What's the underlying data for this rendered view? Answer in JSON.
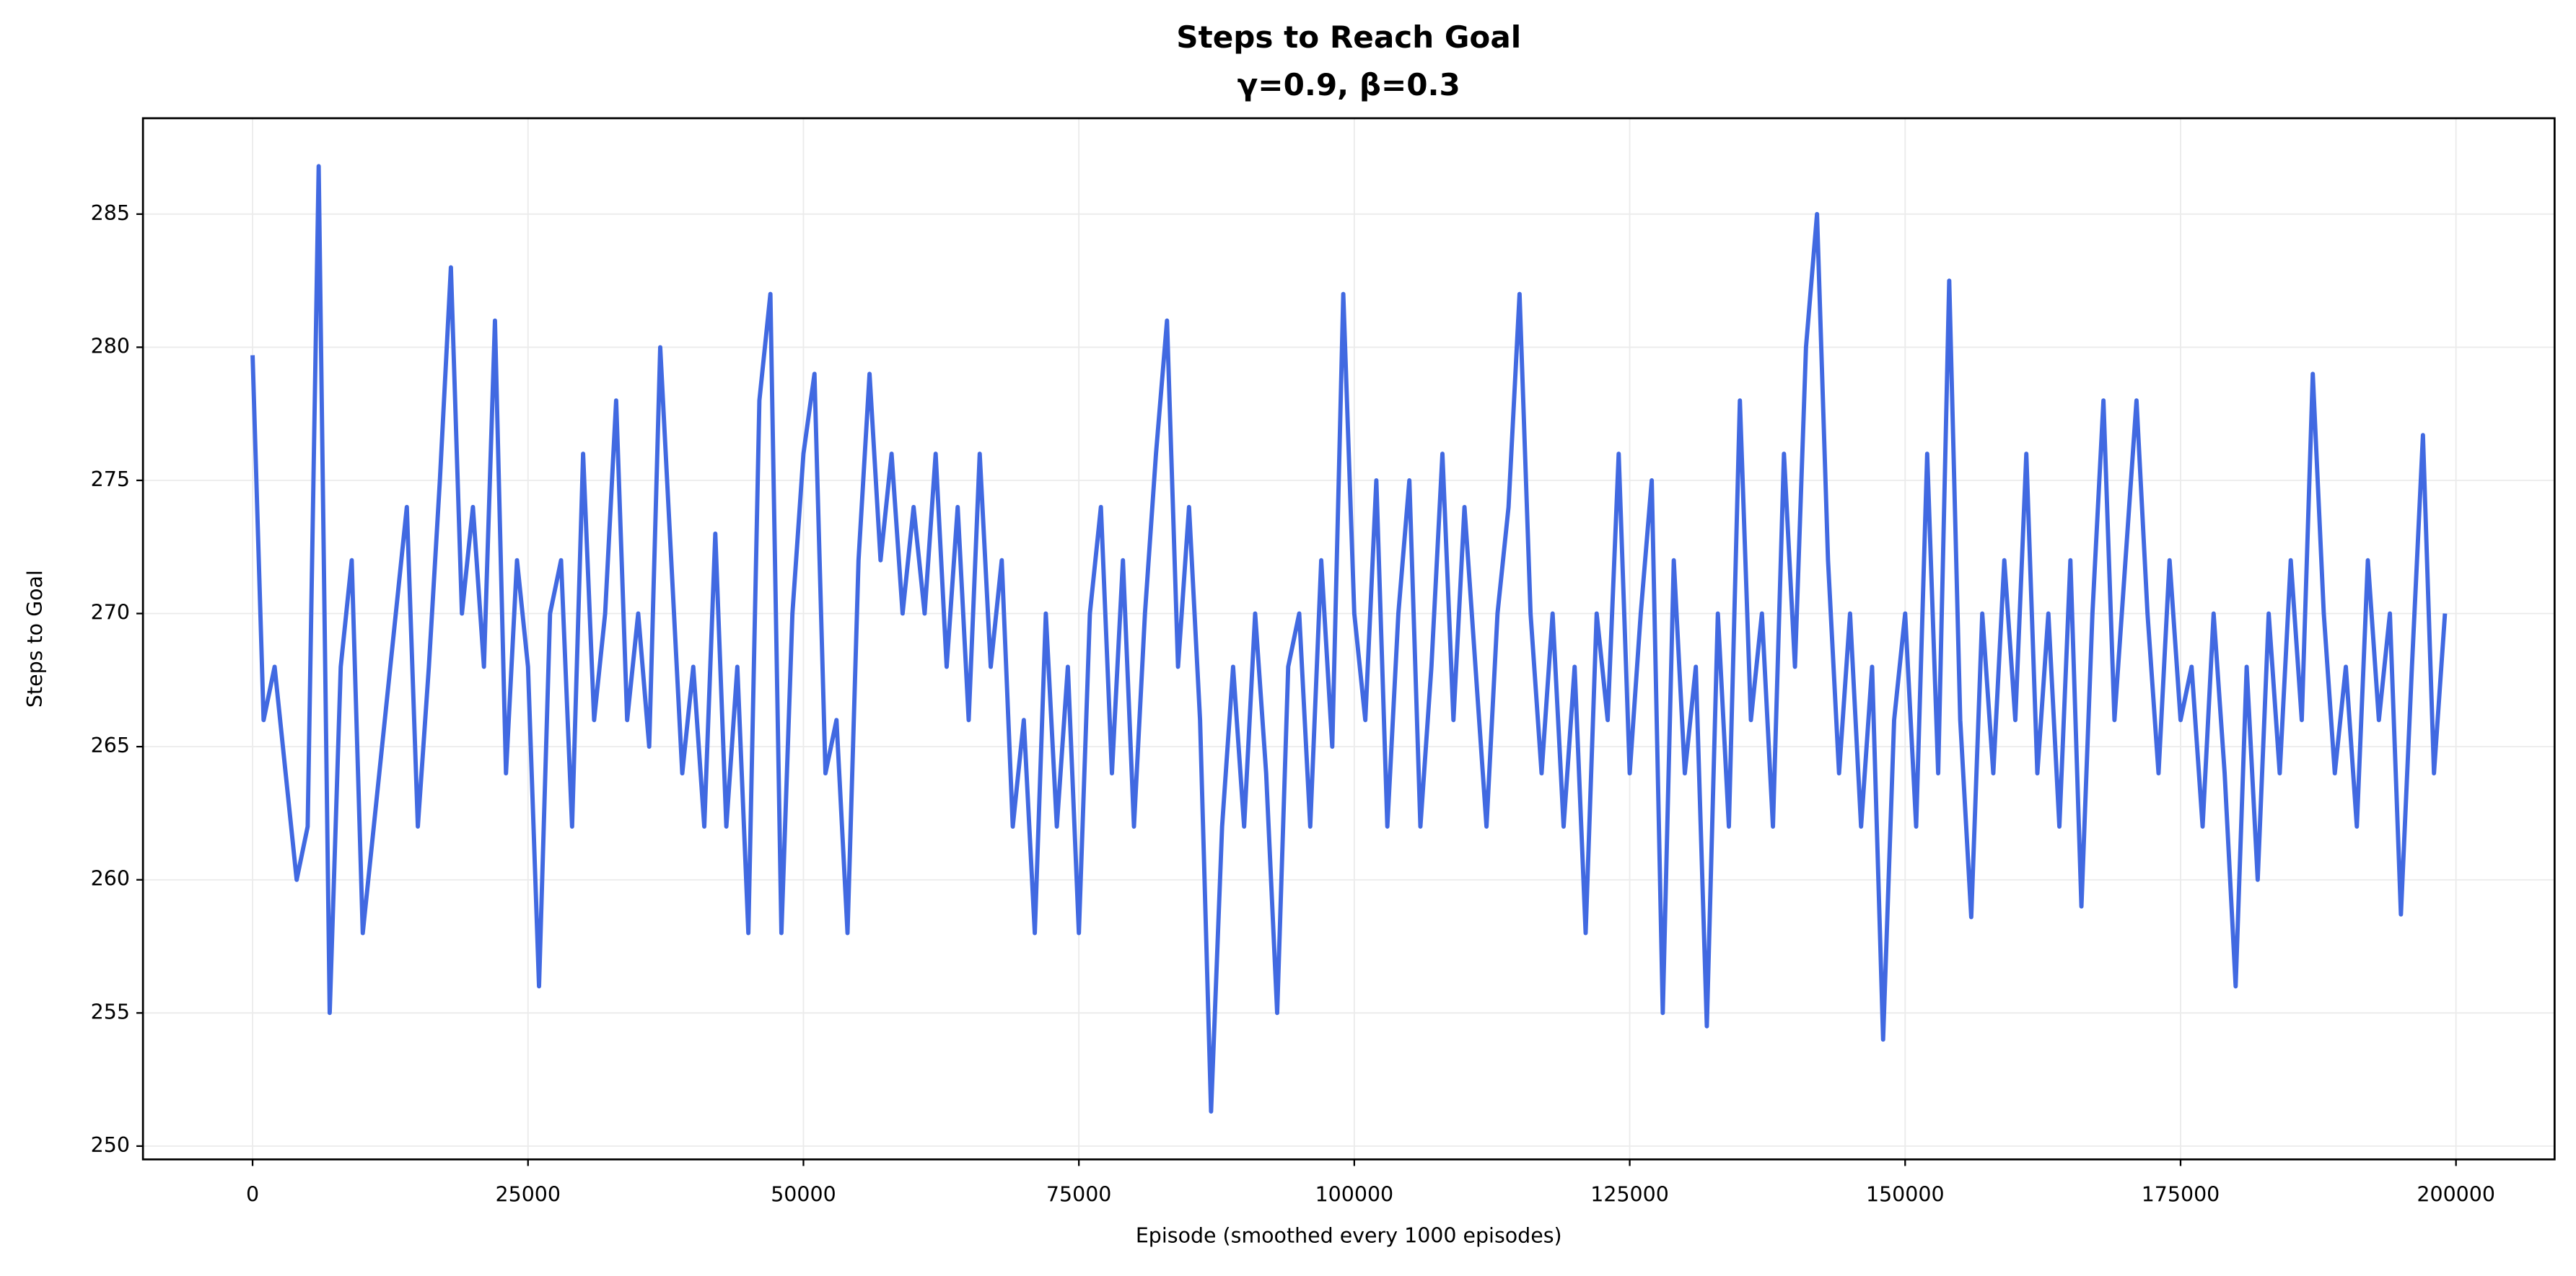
{
  "chart_data": {
    "type": "line",
    "title": "Steps to Reach Goal",
    "subtitle": "γ=0.9, β=0.3",
    "x_label": "Episode (smoothed every 1000 episodes)",
    "y_label": "Steps to Goal",
    "xlim": [
      -9950,
      208950
    ],
    "ylim": [
      249.5,
      288.6
    ],
    "xticks": [
      0,
      25000,
      50000,
      75000,
      100000,
      125000,
      150000,
      175000,
      200000
    ],
    "yticks": [
      250,
      255,
      260,
      265,
      270,
      275,
      280,
      285
    ],
    "grid": true,
    "x": [
      0,
      1000,
      2000,
      3000,
      4000,
      5000,
      6000,
      7000,
      8000,
      9000,
      10000,
      11000,
      12000,
      13000,
      14000,
      15000,
      16000,
      17000,
      18000,
      19000,
      20000,
      21000,
      22000,
      23000,
      24000,
      25000,
      26000,
      27000,
      28000,
      29000,
      30000,
      31000,
      32000,
      33000,
      34000,
      35000,
      36000,
      37000,
      38000,
      39000,
      40000,
      41000,
      42000,
      43000,
      44000,
      45000,
      46000,
      47000,
      48000,
      49000,
      50000,
      51000,
      52000,
      53000,
      54000,
      55000,
      56000,
      57000,
      58000,
      59000,
      60000,
      61000,
      62000,
      63000,
      64000,
      65000,
      66000,
      67000,
      68000,
      69000,
      70000,
      71000,
      72000,
      73000,
      74000,
      75000,
      76000,
      77000,
      78000,
      79000,
      80000,
      81000,
      82000,
      83000,
      84000,
      85000,
      86000,
      87000,
      88000,
      89000,
      90000,
      91000,
      92000,
      93000,
      94000,
      95000,
      96000,
      97000,
      98000,
      99000,
      100000,
      101000,
      102000,
      103000,
      104000,
      105000,
      106000,
      107000,
      108000,
      109000,
      110000,
      111000,
      112000,
      113000,
      114000,
      115000,
      116000,
      117000,
      118000,
      119000,
      120000,
      121000,
      122000,
      123000,
      124000,
      125000,
      126000,
      127000,
      128000,
      129000,
      130000,
      131000,
      132000,
      133000,
      134000,
      135000,
      136000,
      137000,
      138000,
      139000,
      140000,
      141000,
      142000,
      143000,
      144000,
      145000,
      146000,
      147000,
      148000,
      149000,
      150000,
      151000,
      152000,
      153000,
      154000,
      155000,
      156000,
      157000,
      158000,
      159000,
      160000,
      161000,
      162000,
      163000,
      164000,
      165000,
      166000,
      167000,
      168000,
      169000,
      170000,
      171000,
      172000,
      173000,
      174000,
      175000,
      176000,
      177000,
      178000,
      179000,
      180000,
      181000,
      182000,
      183000,
      184000,
      185000,
      186000,
      187000,
      188000,
      189000,
      190000,
      191000,
      192000,
      193000,
      194000,
      195000,
      196000,
      197000,
      198000,
      199000
    ],
    "series": [
      {
        "name": "Steps to Goal",
        "color": "#4169e1",
        "values": [
          279.7,
          266,
          268,
          264,
          260,
          262,
          286.8,
          255,
          268,
          272,
          258,
          262,
          266,
          270,
          274,
          262,
          268,
          275,
          283,
          270,
          274,
          268,
          281,
          264,
          272,
          268,
          256,
          270,
          272,
          262,
          276,
          266,
          270,
          278,
          266,
          270,
          265,
          280,
          272,
          264,
          268,
          262,
          273,
          262,
          268,
          258,
          278,
          282,
          258,
          270,
          276,
          279,
          264,
          266,
          258,
          272,
          279,
          272,
          276,
          270,
          274,
          270,
          276,
          268,
          274,
          266,
          276,
          268,
          272,
          262,
          266,
          258,
          270,
          262,
          268,
          258,
          270,
          274,
          264,
          272,
          262,
          270,
          276,
          281,
          268,
          274,
          266,
          251.3,
          262,
          268,
          262,
          270,
          264,
          255,
          268,
          270,
          262,
          272,
          265,
          282,
          270,
          266,
          275,
          262,
          270,
          275,
          262,
          268,
          276,
          266,
          274,
          268,
          262,
          270,
          274,
          282,
          270,
          264,
          270,
          262,
          268,
          258,
          270,
          266,
          276,
          264,
          270,
          275,
          255,
          272,
          264,
          268,
          254.5,
          270,
          262,
          278,
          266,
          270,
          262,
          276,
          268,
          280,
          285,
          272,
          264,
          270,
          262,
          268,
          254,
          266,
          270,
          262,
          276,
          264,
          282.5,
          266,
          258.6,
          270,
          264,
          272,
          266,
          276,
          264,
          270,
          262,
          272,
          259,
          270,
          278,
          266,
          272,
          278,
          270,
          264,
          272,
          266,
          268,
          262,
          270,
          264,
          256,
          268,
          260,
          270,
          264,
          272,
          266,
          279,
          270,
          264,
          268,
          262,
          272,
          266,
          270,
          258.7,
          268,
          276.7,
          264,
          270
        ]
      }
    ]
  }
}
